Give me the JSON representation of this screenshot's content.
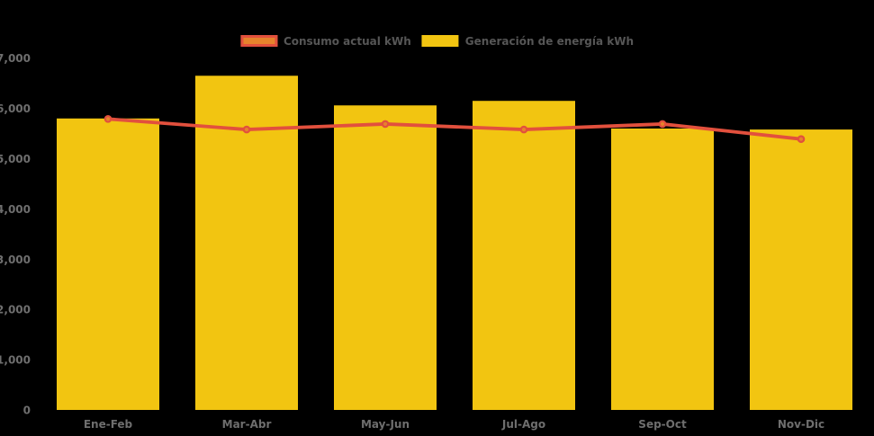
{
  "page": {
    "background": "#000000"
  },
  "legend": {
    "items": [
      {
        "label": "Consumo actual kWh",
        "swatch_fill": "#e6832c",
        "swatch_border": "#e2503d"
      },
      {
        "label": "Generación de energía kWh",
        "swatch_fill": "#f2c511",
        "swatch_border": "#f2c511"
      }
    ]
  },
  "axes": {
    "y_tick_labels": [
      "0",
      "1,000",
      "2,000",
      "3,000",
      "4,000",
      "5,000",
      "6,000",
      "7,000"
    ],
    "x_tick_labels": [
      "Ene-Feb",
      "Mar-Abr",
      "May-Jun",
      "Jul-Ago",
      "Sep-Oct",
      "Nov-Dic"
    ],
    "tick_color": "#6e6e6e"
  },
  "chart_data": {
    "type": "bar",
    "title": "",
    "xlabel": "",
    "ylabel": "",
    "categories": [
      "Ene-Feb",
      "Mar-Abr",
      "May-Jun",
      "Jul-Ago",
      "Sep-Oct",
      "Nov-Dic"
    ],
    "series": [
      {
        "name": "Generación de energía kWh",
        "type": "bar",
        "color": "#f2c511",
        "values": [
          5800,
          6650,
          6060,
          6150,
          5600,
          5580
        ]
      },
      {
        "name": "Consumo actual kWh",
        "type": "line",
        "color": "#e2503d",
        "marker_fill": "#e6832c",
        "values": [
          5790,
          5580,
          5690,
          5580,
          5690,
          5390
        ]
      }
    ],
    "ylim": [
      0,
      7000
    ],
    "ytick_interval": 1000,
    "grid": false,
    "legend_position": "top-center",
    "background": "transparent (rendered black)"
  }
}
